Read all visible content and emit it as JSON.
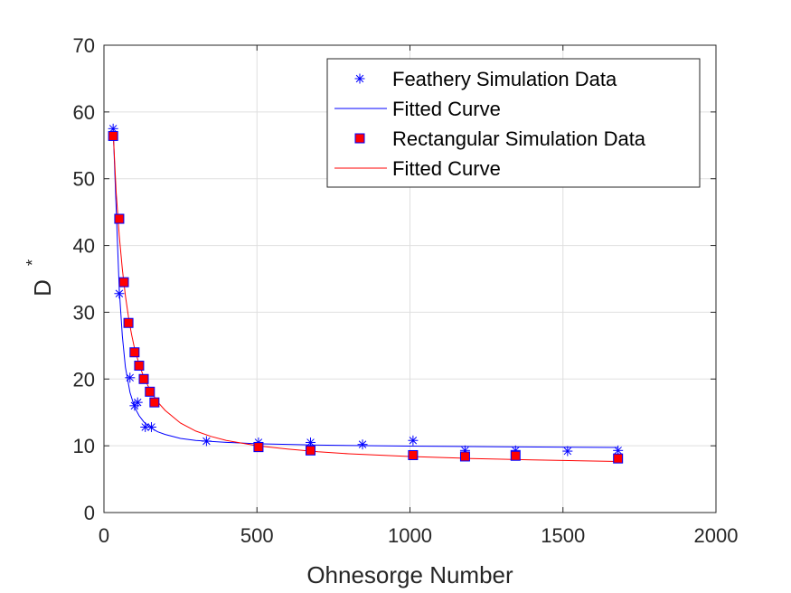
{
  "chart_data": {
    "type": "scatter",
    "xlabel": "Ohnesorge Number",
    "ylabel": "D",
    "ylabel_superscript": "*",
    "xlim": [
      0,
      2000
    ],
    "ylim": [
      0,
      70
    ],
    "xticks": [
      "0",
      "500",
      "1000",
      "1500",
      "2000"
    ],
    "yticks": [
      "0",
      "10",
      "20",
      "30",
      "40",
      "50",
      "60",
      "70"
    ],
    "grid": true,
    "legend_placement": "top-right",
    "series": [
      {
        "name": "Feathery Simulation Data",
        "kind": "markers",
        "marker": "asterisk",
        "color": "#0000ff",
        "x": [
          30,
          50,
          85,
          100,
          110,
          135,
          155,
          335,
          505,
          675,
          845,
          1010,
          1180,
          1345,
          1515,
          1680
        ],
        "y": [
          57.5,
          32.8,
          20.2,
          16.0,
          16.5,
          12.8,
          12.8,
          10.7,
          10.5,
          10.5,
          10.2,
          10.8,
          9.3,
          9.3,
          9.2,
          9.3
        ]
      },
      {
        "name": "Fitted Curve",
        "kind": "line",
        "color": "#0000ff",
        "x": [
          30,
          40,
          50,
          60,
          70,
          85,
          100,
          115,
          130,
          150,
          175,
          200,
          250,
          300,
          400,
          500,
          700,
          1000,
          1300,
          1680
        ],
        "y": [
          57.5,
          45.5,
          33.5,
          26.5,
          21.8,
          18.0,
          15.8,
          14.5,
          13.6,
          12.8,
          12.1,
          11.7,
          11.1,
          10.8,
          10.5,
          10.3,
          10.1,
          9.95,
          9.85,
          9.75
        ]
      },
      {
        "name": "Rectangular Simulation Data",
        "kind": "markers",
        "marker": "square",
        "color": "#ff0000",
        "edgecolor": "#0000ff",
        "x": [
          30,
          50,
          65,
          80,
          100,
          115,
          130,
          150,
          165,
          505,
          675,
          1010,
          1180,
          1345,
          1680
        ],
        "y": [
          56.4,
          44.0,
          34.5,
          28.4,
          24.0,
          22.0,
          20.0,
          18.1,
          16.5,
          9.8,
          9.3,
          8.6,
          8.4,
          8.5,
          8.1
        ]
      },
      {
        "name": "Fitted Curve",
        "kind": "line",
        "color": "#ff0000",
        "x": [
          30,
          40,
          50,
          60,
          70,
          80,
          90,
          100,
          115,
          130,
          150,
          175,
          200,
          250,
          300,
          350,
          400,
          500,
          600,
          700,
          800,
          1000,
          1200,
          1400,
          1680
        ],
        "y": [
          57.0,
          48.0,
          41.5,
          36.5,
          32.5,
          29.3,
          26.7,
          24.6,
          22.2,
          20.3,
          18.4,
          16.6,
          15.3,
          13.4,
          12.2,
          11.4,
          10.8,
          10.0,
          9.5,
          9.1,
          8.8,
          8.4,
          8.1,
          7.9,
          7.65
        ]
      }
    ]
  }
}
